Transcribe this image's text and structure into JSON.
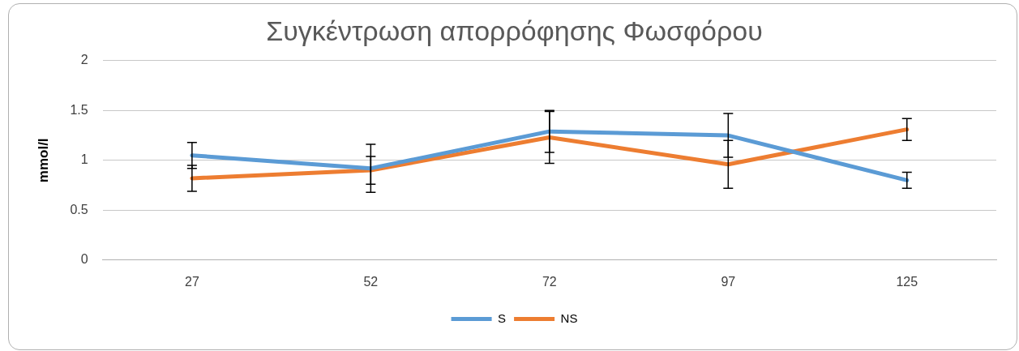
{
  "chart_data": {
    "type": "line",
    "title": "Συγκέντρωση απορρόφησης Φωσφόρου",
    "ylabel": "mmol/l",
    "categories": [
      "27",
      "52",
      "72",
      "97",
      "125"
    ],
    "series": [
      {
        "name": "S",
        "color": "#5b9bd5",
        "values": [
          1.05,
          0.92,
          1.29,
          1.25,
          0.8
        ],
        "errors": [
          0.13,
          0.24,
          0.21,
          0.22,
          0.08
        ]
      },
      {
        "name": "NS",
        "color": "#ed7d31",
        "values": [
          0.82,
          0.9,
          1.23,
          0.96,
          1.31
        ],
        "errors": [
          0.13,
          0.14,
          0.26,
          0.24,
          0.11
        ]
      }
    ],
    "ylim": [
      0,
      2
    ],
    "yticks": [
      0,
      0.5,
      1,
      1.5,
      2
    ],
    "grid": "y",
    "legend": "bottom",
    "marker": "none",
    "line_style": "solid"
  }
}
